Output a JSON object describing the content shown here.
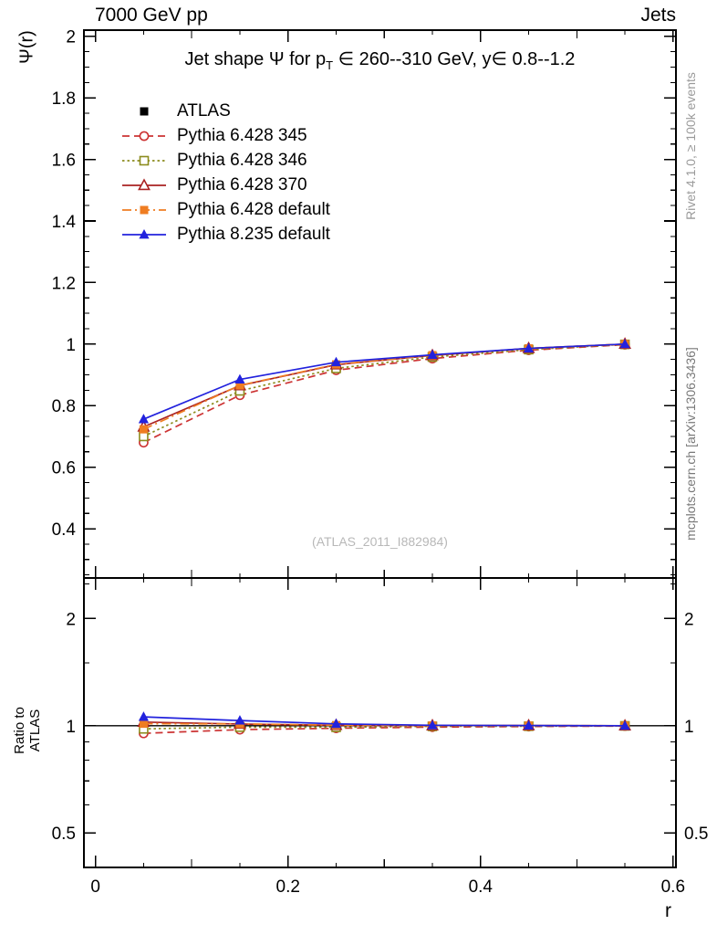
{
  "header": {
    "left": "7000 GeV pp",
    "right": "Jets"
  },
  "title": {
    "pre": "Jet shape Ψ for p",
    "sub": "T",
    "post": " ∈ 260--310 GeV, y∈ 0.8--1.2"
  },
  "axes": {
    "main_ylabel": "Ψ(r)",
    "ratio_ylabel": "Ratio to ATLAS",
    "xlabel": "r"
  },
  "watermark": "(ATLAS_2011_I882984)",
  "side_notes": {
    "top": "Rivet 4.1.0, ≥ 100k events",
    "bottom": "mcplots.cern.ch [arXiv:1306.3436]"
  },
  "chart_data": {
    "type": "line",
    "title": "Jet shape Ψ for p_T ∈ 260--310 GeV, y∈ 0.8--1.2",
    "xlabel": "r",
    "ylabel": "Ψ(r)",
    "ratio_ylabel": "Ratio to ATLAS",
    "legend_position": "top-left",
    "grid": false,
    "x": [
      0.05,
      0.15,
      0.25,
      0.35,
      0.45,
      0.55
    ],
    "xlim": [
      -0.012,
      0.603
    ],
    "x_major_ticks": [
      0,
      0.2,
      0.4,
      0.6
    ],
    "x_tick_labels": [
      "0",
      "0.2",
      "0.4",
      "0.6"
    ],
    "main_panel": {
      "scale": "linear",
      "ylim": [
        0.24,
        2.02
      ],
      "yticks": [
        0.4,
        0.6,
        0.8,
        1,
        1.2,
        1.4,
        1.6,
        1.8,
        2
      ]
    },
    "ratio_panel": {
      "scale": "log",
      "ylim": [
        0.4,
        2.6
      ],
      "yticks": [
        0.5,
        1,
        2
      ],
      "minor_yticks": [
        0.6,
        0.7,
        0.8,
        0.9,
        1.5,
        2.5
      ],
      "reference": 1
    },
    "series": [
      {
        "name": "ATLAS",
        "color": "#000000",
        "marker": "square-filled",
        "line": "none",
        "values": [
          0.714,
          0.856,
          0.93,
          0.962,
          0.985,
          1.0
        ],
        "errors": [
          0.012,
          0.009,
          0.006,
          0.005,
          0.004,
          0.004
        ],
        "ratio": [
          1,
          1,
          1,
          1,
          1,
          1
        ]
      },
      {
        "name": "Pythia 6.428 345",
        "color": "#cc3333",
        "marker": "circle-open",
        "line": "dashed",
        "values": [
          0.68,
          0.834,
          0.915,
          0.953,
          0.98,
          0.998
        ],
        "ratio": [
          0.952,
          0.975,
          0.984,
          0.991,
          0.995,
          0.998
        ]
      },
      {
        "name": "Pythia 6.428 346",
        "color": "#8c8c1e",
        "marker": "square-open",
        "line": "dotted",
        "values": [
          0.7,
          0.848,
          0.921,
          0.958,
          0.982,
          0.999
        ],
        "ratio": [
          0.98,
          0.991,
          0.99,
          0.996,
          0.997,
          0.999
        ]
      },
      {
        "name": "Pythia 6.428 370",
        "color": "#aa2222",
        "marker": "triangle-open",
        "line": "solid",
        "values": [
          0.731,
          0.865,
          0.933,
          0.963,
          0.986,
          1.0
        ],
        "ratio": [
          1.024,
          1.011,
          1.003,
          1.001,
          1.001,
          1.0
        ]
      },
      {
        "name": "Pythia 6.428 default",
        "color": "#ef7d22",
        "marker": "square-filled",
        "line": "dashdot",
        "values": [
          0.723,
          0.866,
          0.934,
          0.964,
          0.986,
          1.0
        ],
        "ratio": [
          1.013,
          1.012,
          1.004,
          1.002,
          1.001,
          1.0
        ]
      },
      {
        "name": "Pythia 8.235 default",
        "color": "#2222dd",
        "marker": "triangle-filled",
        "line": "solid",
        "values": [
          0.756,
          0.885,
          0.941,
          0.965,
          0.986,
          1.0
        ],
        "ratio": [
          1.059,
          1.034,
          1.012,
          1.003,
          1.001,
          1.0
        ]
      }
    ]
  }
}
